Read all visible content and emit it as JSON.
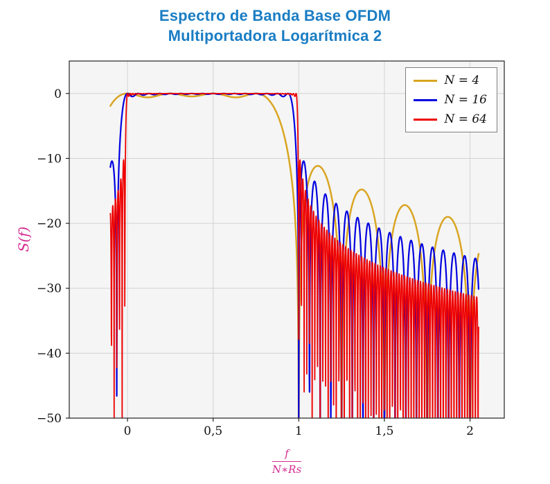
{
  "title": {
    "line1": "Espectro de Banda Base OFDM",
    "line2": "Multiportadora Logarítmica 2",
    "color": "#1a7dc4"
  },
  "axes": {
    "ylabel": "S(f)",
    "xlabel_numerator": "f",
    "xlabel_denominator": "N∗Rs",
    "label_color": "#d42a90"
  },
  "chart_data": {
    "type": "line",
    "title": "Espectro de Banda Base OFDM Multiportadora Logarítmica 2",
    "xlabel": "f/(N*Rs)",
    "ylabel": "S(f)  [dB]",
    "xlim": [
      -0.34,
      2.2
    ],
    "ylim": [
      -50,
      5
    ],
    "x_ticks": [
      0,
      0.5,
      1,
      1.5,
      2
    ],
    "x_tick_labels": [
      "0",
      "0,5",
      "1",
      "1,5",
      "2"
    ],
    "y_ticks": [
      0,
      -10,
      -20,
      -30,
      -40,
      -50
    ],
    "y_tick_labels": [
      "0",
      "−10",
      "−20",
      "−30",
      "−40",
      "−50"
    ],
    "grid": true,
    "colors": {
      "plot_bg": "#f5f5f5",
      "grid": "#d2d2d2",
      "frame": "#222222",
      "tick_label": "#111111"
    },
    "legend": {
      "position": "top-right",
      "entries": [
        {
          "label": "N = 4",
          "color": "#D9A521"
        },
        {
          "label": "N = 16",
          "color": "#0000E0"
        },
        {
          "label": "N = 64",
          "color": "#EE0000"
        }
      ]
    },
    "series": [
      {
        "label": "N = 4",
        "N": 4,
        "color": "#D9A521",
        "width": 2.5
      },
      {
        "label": "N = 16",
        "N": 16,
        "color": "#0000E0",
        "width": 2.2
      },
      {
        "label": "N = 64",
        "N": 64,
        "color": "#EE0000",
        "width": 1.8
      }
    ],
    "generator": {
      "formula": "S_N(u) = 10*log10( sum_{k=0..N-1} sinc^2(N*u - k) ), sinc(x)=sin(pi*x)/(pi*x), u = f/(N*Rs)",
      "description": "Flat 0 dB band over 0<=u<=1 with in-band ripple, sinc sidelobes decaying outside the band; deeper/faster oscillation for larger N; nulls at u=m/N clipped at -50 dB axis floor",
      "x_start": -0.1,
      "x_end": 2.05,
      "samples": 2250,
      "clip_db": -50
    }
  }
}
